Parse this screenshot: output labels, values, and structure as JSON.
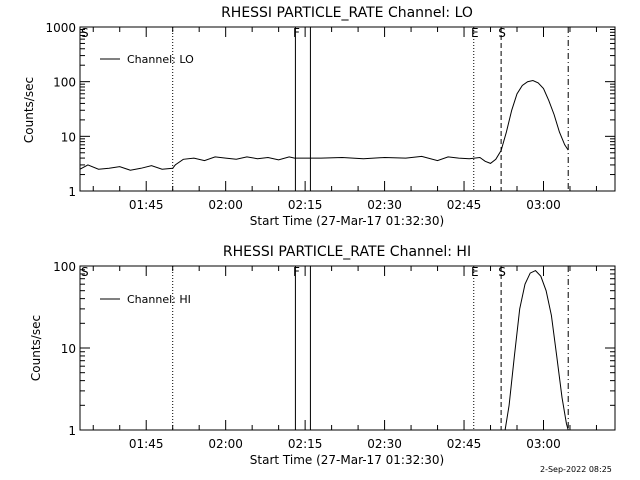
{
  "footer": {
    "date": "2-Sep-2022 08:25"
  },
  "chart_data": [
    {
      "type": "line",
      "title": "RHESSI PARTICLE_RATE Channel: LO",
      "ylabel": "Counts/sec",
      "xlabel": "Start Time (27-Mar-17 01:32:30)",
      "yscale": "log",
      "ylim": [
        1,
        1000
      ],
      "xlim": [
        "01:32:30",
        "03:13:30"
      ],
      "ytick_labels": [
        "1",
        "10",
        "100",
        "1000"
      ],
      "xtick_labels": [
        "01:45",
        "02:00",
        "02:15",
        "02:30",
        "02:45",
        "03:00"
      ],
      "legend": {
        "position": "top-left",
        "entries": [
          "Channel: LO"
        ]
      },
      "markers": [
        {
          "label": "",
          "time": "01:50:00",
          "style": "dotted"
        },
        {
          "label": "F",
          "time": "02:13:10",
          "style": "solid"
        },
        {
          "label": "",
          "time": "02:16:00",
          "style": "solid"
        },
        {
          "label": "E",
          "time": "02:46:50",
          "style": "dotted"
        },
        {
          "label": "S",
          "time": "02:52:00",
          "style": "dashed"
        },
        {
          "label": "",
          "time": "03:04:40",
          "style": "dashdot"
        }
      ],
      "corner_label": "S",
      "series": [
        {
          "x": [
            "01:32:30",
            "01:34:00",
            "01:36:00",
            "01:38:00",
            "01:40:00",
            "01:42:00",
            "01:44:00",
            "01:46:00",
            "01:48:00",
            "01:50:00",
            "01:50:30",
            "01:52:00",
            "01:54:00",
            "01:56:00",
            "01:58:00",
            "02:00:00",
            "02:02:00",
            "02:04:00",
            "02:06:00",
            "02:08:00",
            "02:10:00",
            "02:12:00",
            "02:13:00",
            "02:15:00",
            "02:18:00",
            "02:22:00",
            "02:26:00",
            "02:30:00",
            "02:34:00",
            "02:37:00",
            "02:40:00",
            "02:42:00",
            "02:44:00",
            "02:46:00",
            "02:48:00",
            "02:49:00",
            "02:50:00",
            "02:51:00",
            "02:52:00",
            "02:53:00",
            "02:54:00",
            "02:55:00",
            "02:56:00",
            "02:57:00",
            "02:58:00",
            "02:59:00",
            "03:00:00",
            "03:01:00",
            "03:02:00",
            "03:03:00",
            "03:04:00",
            "03:04:40"
          ],
          "y": [
            2.5,
            3.0,
            2.5,
            2.6,
            2.8,
            2.4,
            2.6,
            2.9,
            2.5,
            2.6,
            3.0,
            3.8,
            4.0,
            3.6,
            4.2,
            4.0,
            3.8,
            4.2,
            3.9,
            4.1,
            3.7,
            4.2,
            4.0,
            4.0,
            4.0,
            4.1,
            3.9,
            4.1,
            4.0,
            4.3,
            3.6,
            4.2,
            4.0,
            3.9,
            4.1,
            3.5,
            3.2,
            3.8,
            5.5,
            12,
            30,
            60,
            85,
            100,
            105,
            95,
            75,
            45,
            25,
            12,
            7,
            5.6
          ]
        }
      ]
    },
    {
      "type": "line",
      "title": "RHESSI PARTICLE_RATE Channel: HI",
      "ylabel": "Counts/sec",
      "xlabel": "Start Time (27-Mar-17 01:32:30)",
      "yscale": "log",
      "ylim": [
        1,
        100
      ],
      "xlim": [
        "01:32:30",
        "03:13:30"
      ],
      "ytick_labels": [
        "1",
        "10",
        "100"
      ],
      "xtick_labels": [
        "01:45",
        "02:00",
        "02:15",
        "02:30",
        "02:45",
        "03:00"
      ],
      "legend": {
        "position": "top-left",
        "entries": [
          "Channel: HI"
        ]
      },
      "markers": [
        {
          "label": "",
          "time": "01:50:00",
          "style": "dotted"
        },
        {
          "label": "F",
          "time": "02:13:10",
          "style": "solid"
        },
        {
          "label": "",
          "time": "02:16:00",
          "style": "solid"
        },
        {
          "label": "E",
          "time": "02:46:50",
          "style": "dotted"
        },
        {
          "label": "S",
          "time": "02:52:00",
          "style": "dashed"
        },
        {
          "label": "",
          "time": "03:04:40",
          "style": "dashdot"
        }
      ],
      "corner_label": "S",
      "series": [
        {
          "x": [
            "02:52:45",
            "02:53:30",
            "02:54:30",
            "02:55:30",
            "02:56:30",
            "02:57:30",
            "02:58:30",
            "02:59:30",
            "03:00:30",
            "03:01:30",
            "03:02:30",
            "03:03:30",
            "03:04:20",
            "03:04:40"
          ],
          "y": [
            1.0,
            2.0,
            8,
            30,
            60,
            82,
            88,
            75,
            50,
            25,
            8,
            2.5,
            1.2,
            1.0
          ]
        }
      ]
    }
  ]
}
